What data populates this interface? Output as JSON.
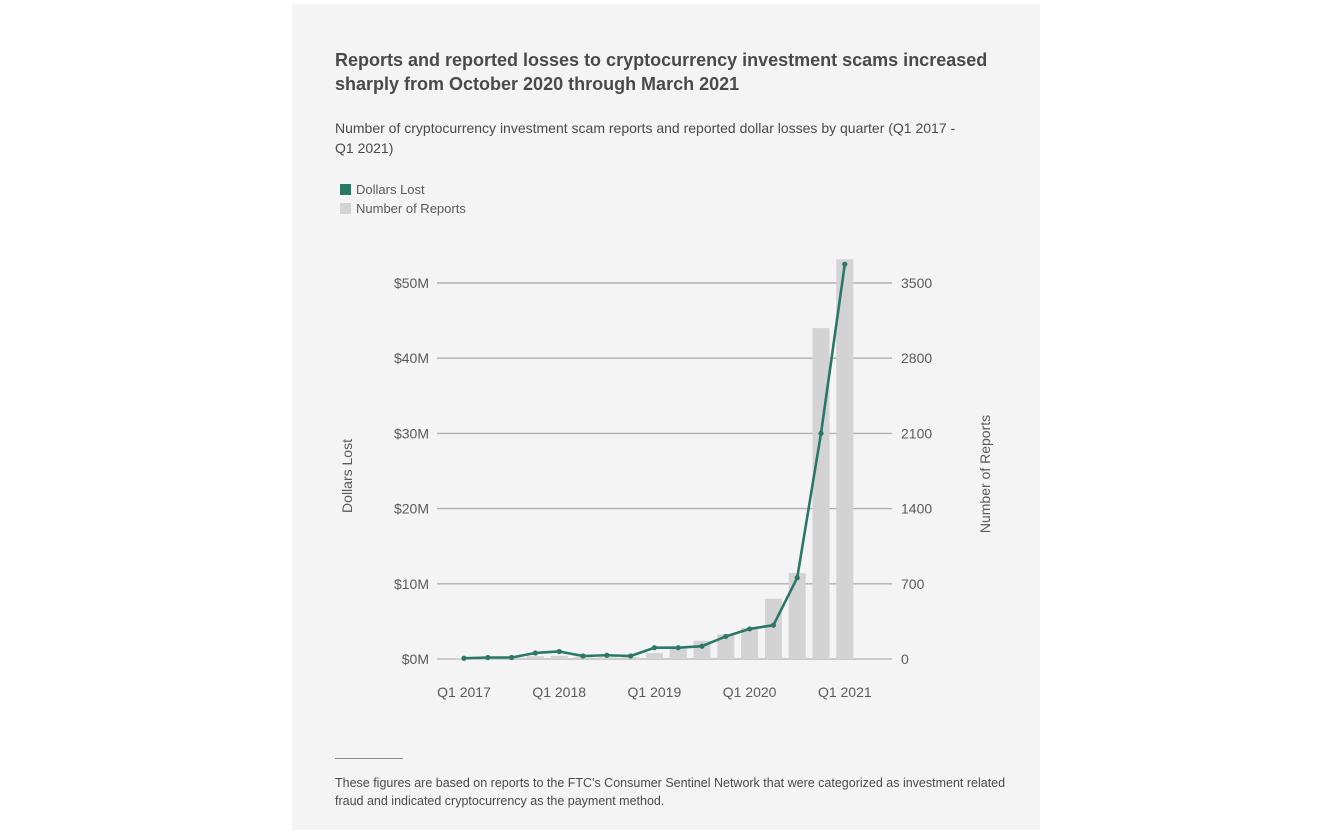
{
  "title": "Reports and reported losses to cryptocurrency investment scams increased sharply from October 2020 through March 2021",
  "subtitle": "Number of cryptocurrency investment scam reports and reported dollar losses by quarter (Q1 2017 - Q1 2021)",
  "legend": {
    "line_label": "Dollars Lost",
    "bar_label": "Number of Reports"
  },
  "footnote": "These figures are based on reports to the FTC's Consumer Sentinel Network that were categorized as investment related fraud and indicated cryptocurrency as the payment method.",
  "colors": {
    "line": "#2a7865",
    "bar": "#d3d3d3",
    "grid": "#b0b0b0",
    "background": "#f4f4f4"
  },
  "chart_data": {
    "type": "bar+line",
    "categories": [
      "Q1 2017",
      "Q2 2017",
      "Q3 2017",
      "Q4 2017",
      "Q1 2018",
      "Q2 2018",
      "Q3 2018",
      "Q4 2018",
      "Q1 2019",
      "Q2 2019",
      "Q3 2019",
      "Q4 2019",
      "Q1 2020",
      "Q2 2020",
      "Q3 2020",
      "Q4 2020",
      "Q1 2021"
    ],
    "x_tick_labels": [
      "Q1 2017",
      "Q1 2018",
      "Q1 2019",
      "Q1 2020",
      "Q1 2021"
    ],
    "series": [
      {
        "name": "Dollars Lost",
        "type": "line",
        "axis": "left",
        "values": [
          0.1,
          0.2,
          0.2,
          0.8,
          1.0,
          0.4,
          0.5,
          0.4,
          1.5,
          1.5,
          1.7,
          3.0,
          4.0,
          4.5,
          10.8,
          30.0,
          52.5
        ]
      },
      {
        "name": "Number of Reports",
        "type": "bar",
        "axis": "right",
        "values": [
          5,
          10,
          12,
          25,
          30,
          18,
          15,
          20,
          55,
          95,
          170,
          230,
          290,
          560,
          800,
          3080,
          3720
        ]
      }
    ],
    "ylabel": "Dollars Lost",
    "y2label": "Number of Reports",
    "ylim": [
      0,
      50
    ],
    "y_tick_labels": [
      "$0M",
      "$10M",
      "$20M",
      "$30M",
      "$40M",
      "$50M"
    ],
    "y2lim": [
      0,
      3500
    ],
    "y2_tick_labels": [
      "0",
      "700",
      "1400",
      "2100",
      "2800",
      "3500"
    ],
    "grid": true,
    "legend_position": "top-left"
  }
}
